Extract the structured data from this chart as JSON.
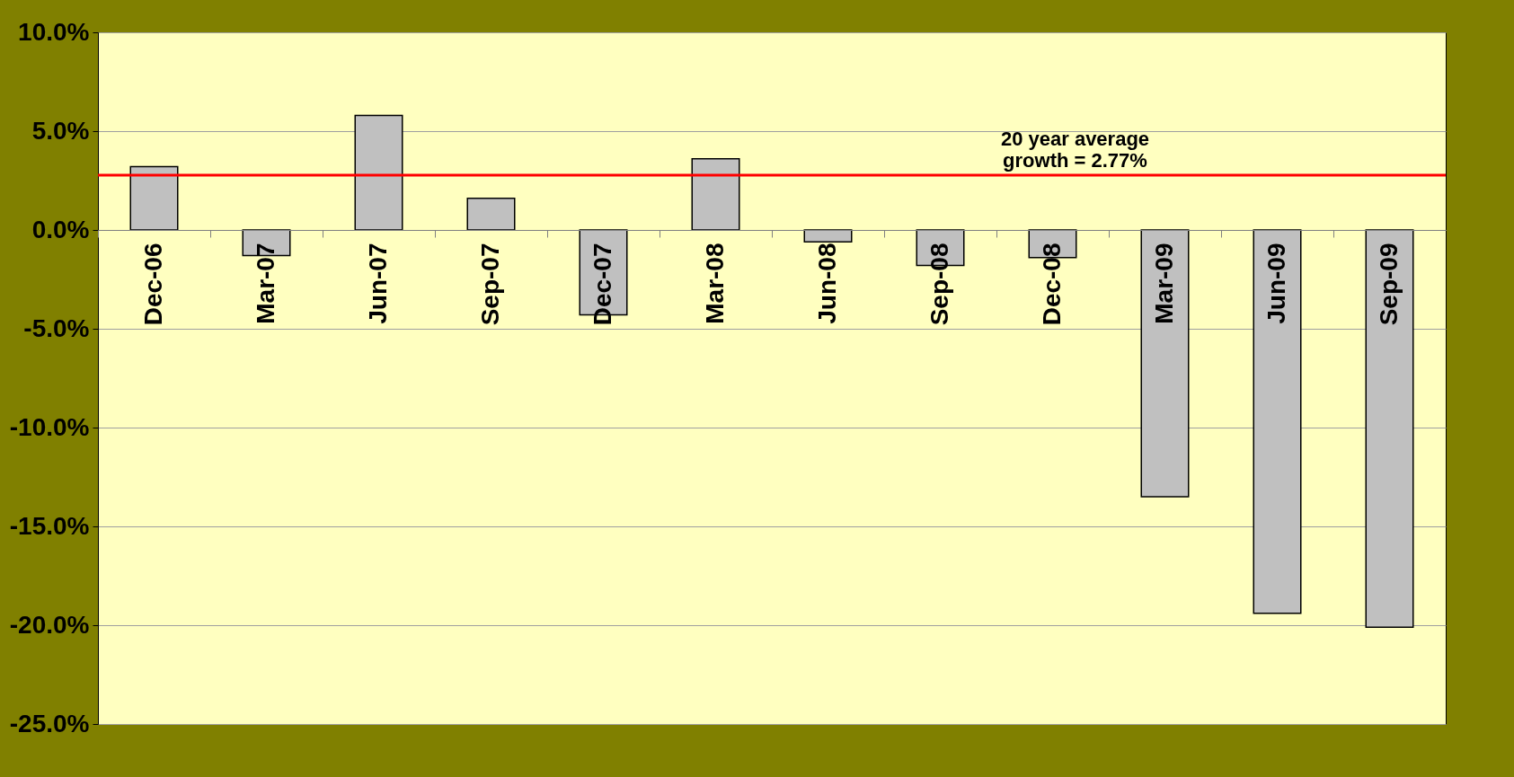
{
  "chart_data": {
    "type": "bar",
    "categories": [
      "Dec-06",
      "Mar-07",
      "Jun-07",
      "Sep-07",
      "Dec-07",
      "Mar-08",
      "Jun-08",
      "Sep-08",
      "Dec-08",
      "Mar-09",
      "Jun-09",
      "Sep-09"
    ],
    "values": [
      3.2,
      -1.3,
      5.8,
      1.6,
      -4.3,
      3.6,
      -0.6,
      -1.8,
      -1.4,
      -13.5,
      -19.4,
      -20.1
    ],
    "color": "#c0c0c0",
    "ylim": [
      -25,
      10
    ],
    "yticks": [
      {
        "value": -25,
        "label": "-25.0%"
      },
      {
        "value": -20,
        "label": "-20.0%"
      },
      {
        "value": -15,
        "label": "-15.0%"
      },
      {
        "value": -10,
        "label": "-10.0%"
      },
      {
        "value": -5,
        "label": "-5.0%"
      },
      {
        "value": 0,
        "label": "0.0%"
      },
      {
        "value": 5,
        "label": "5.0%"
      },
      {
        "value": 10,
        "label": "10.0%"
      }
    ],
    "grid": "y",
    "ref_lines": [
      {
        "axis": "y",
        "value": 2.77,
        "label": "20 year average\n growth = 2.77%",
        "color": "#ff0000"
      }
    ]
  }
}
